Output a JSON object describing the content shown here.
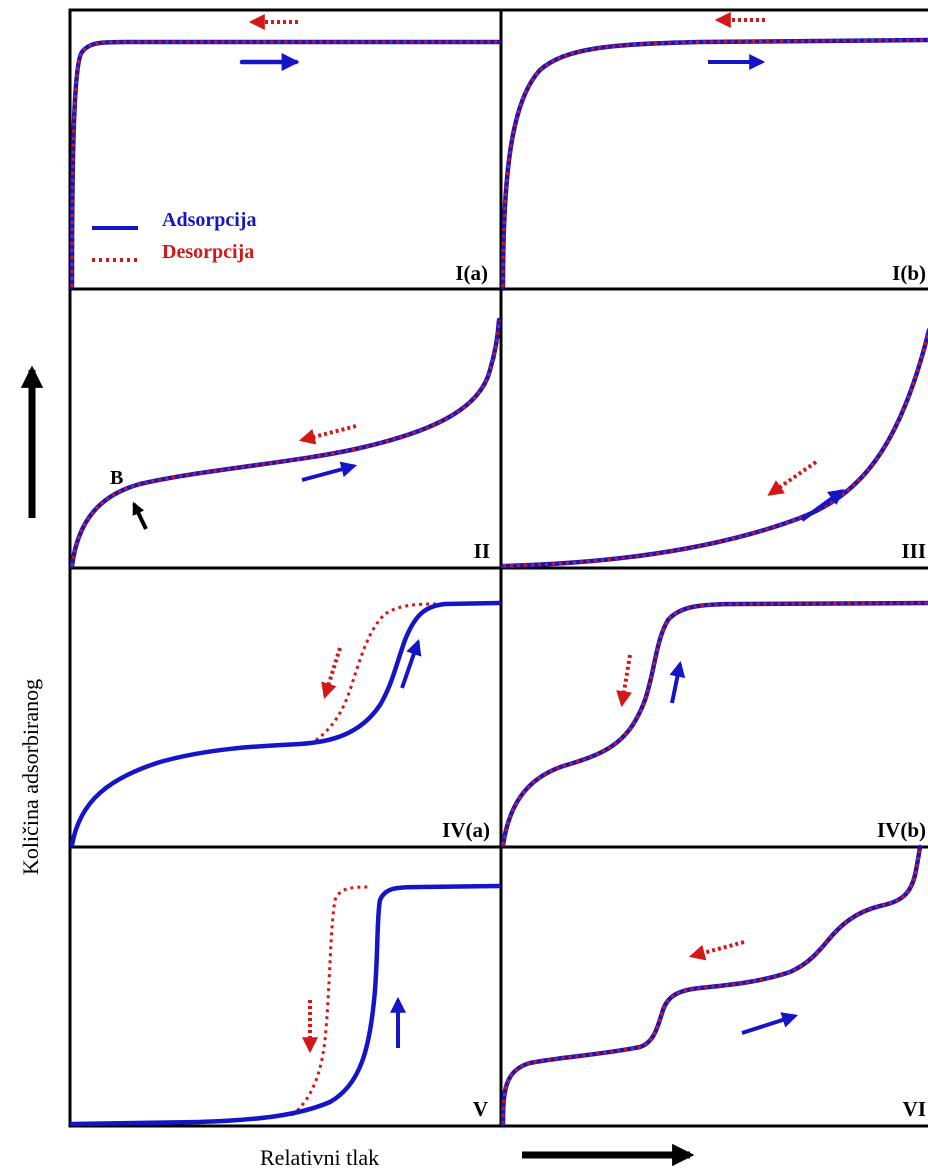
{
  "y_axis_label": "Količina adsorbiranog",
  "x_axis_label": "Relativni tlak",
  "legend": {
    "adsorption": "Adsorpcija",
    "desorption": "Desorpcija"
  },
  "colors": {
    "adsorption": "#1515c8",
    "desorption": "#d21818",
    "frame": "#000000"
  },
  "panels": [
    {
      "id": "I(a)",
      "label": "I(a)",
      "hysteresis": false
    },
    {
      "id": "I(b)",
      "label": "I(b)",
      "hysteresis": false
    },
    {
      "id": "II",
      "label": "II",
      "hysteresis": false,
      "point_label": "B"
    },
    {
      "id": "III",
      "label": "III",
      "hysteresis": false
    },
    {
      "id": "IV(a)",
      "label": "IV(a)",
      "hysteresis": true
    },
    {
      "id": "IV(b)",
      "label": "IV(b)",
      "hysteresis": false
    },
    {
      "id": "V",
      "label": "V",
      "hysteresis": true
    },
    {
      "id": "VI",
      "label": "VI",
      "hysteresis": false
    }
  ]
}
